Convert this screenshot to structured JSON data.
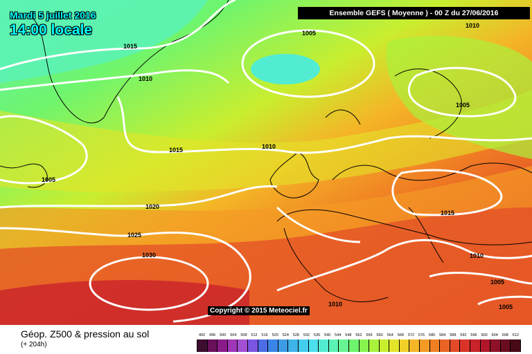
{
  "header": {
    "date": "Mardi 5 juillet 2016",
    "time": "14:00 locale",
    "model_run": "Ensemble GEFS  ( Moyenne )  -  00 Z du 27/06/2016"
  },
  "map": {
    "copyright": "Copyright © 2015 Meteociel.fr",
    "isobar_color": "#ffffff",
    "coast_color": "#000000",
    "isobar_labels": [
      "1015",
      "1010",
      "1005",
      "1005",
      "1010",
      "1010",
      "1015",
      "1005",
      "1020",
      "1025",
      "1030",
      "1015",
      "1010",
      "1005",
      "1005",
      "1010"
    ]
  },
  "footer": {
    "parameter": "Géop. Z500 & pression au sol",
    "lead_time": "(+ 204h)"
  },
  "scale": {
    "ticks": [
      "492",
      "496",
      "500",
      "504",
      "508",
      "512",
      "516",
      "520",
      "524",
      "528",
      "532",
      "536",
      "540",
      "544",
      "548",
      "552",
      "556",
      "560",
      "564",
      "568",
      "572",
      "576",
      "580",
      "584",
      "588",
      "592",
      "596",
      "600",
      "604",
      "608",
      "612"
    ],
    "colors": [
      "#3d0d30",
      "#6a0f5a",
      "#8a1c8a",
      "#9f36b8",
      "#a34fd2",
      "#7a54e3",
      "#4c6de6",
      "#3a86e8",
      "#3c9ce6",
      "#3fb4ea",
      "#43cdef",
      "#4be0ec",
      "#52ecd2",
      "#5cf3b4",
      "#67f592",
      "#6ff56d",
      "#86f44d",
      "#a9f23c",
      "#c9ee2f",
      "#e4e52a",
      "#f1d128",
      "#f4b526",
      "#f49a25",
      "#f07f24",
      "#ea6325",
      "#e34a27",
      "#da3429",
      "#c9232a",
      "#b0182a",
      "#8f1127",
      "#6b0c20",
      "#480a16"
    ]
  }
}
